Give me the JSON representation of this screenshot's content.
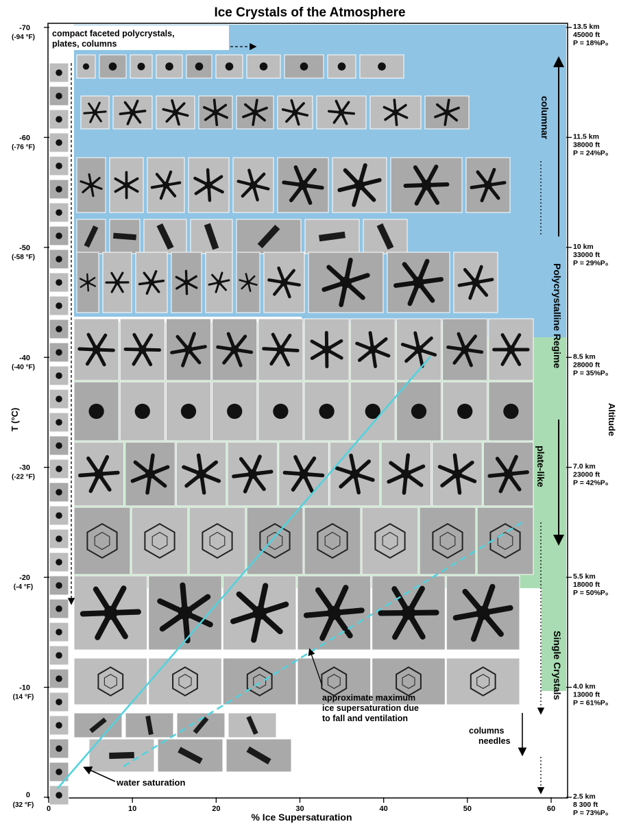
{
  "title": "Ice Crystals of the Atmosphere",
  "colors": {
    "columnar": "#8fc4e4",
    "platelike": "#a9dcb2",
    "photo_gray": "#9a9a9a",
    "saturation_line": "#4fd3df"
  },
  "x_axis": {
    "label": "% Ice Supersaturation",
    "ticks": [
      "0",
      "10",
      "20",
      "30",
      "40",
      "50",
      "60"
    ],
    "range": [
      0,
      60
    ]
  },
  "y_axis": {
    "label": "T (°C)",
    "ticks": [
      {
        "c": "-70",
        "f": "(-94 °F)"
      },
      {
        "c": "-60",
        "f": "(-76 °F)"
      },
      {
        "c": "-50",
        "f": "(-58 °F)"
      },
      {
        "c": "-40",
        "f": "(-40 °F)"
      },
      {
        "c": "-30",
        "f": "(-22 °F)"
      },
      {
        "c": "-20",
        "f": "(-4 °F)"
      },
      {
        "c": "-10",
        "f": "(14 °F)"
      },
      {
        "c": "0",
        "f": "(32 °F)"
      }
    ]
  },
  "right_axis": {
    "label": "Altitude",
    "marks": [
      {
        "km": "13.5 km",
        "ft": "45000 ft",
        "p": "P = 18%P₀"
      },
      {
        "km": "11.5 km",
        "ft": "38000 ft",
        "p": "P = 24%P₀"
      },
      {
        "km": "10 km",
        "ft": "33000 ft",
        "p": "P = 29%P₀"
      },
      {
        "km": "8.5 km",
        "ft": "28000 ft",
        "p": "P = 35%P₀"
      },
      {
        "km": "7.0 km",
        "ft": "23000 ft",
        "p": "P = 42%P₀"
      },
      {
        "km": "5.5 km",
        "ft": "18000 ft",
        "p": "P = 50%P₀"
      },
      {
        "km": "4.0 km",
        "ft": "13000 ft",
        "p": "P = 61%P₀"
      },
      {
        "km": "2.5 km",
        "ft": "8 300 ft",
        "p": "P = 73%P₀"
      }
    ]
  },
  "annotations": {
    "compact_line1": "compact faceted polycrystals,",
    "compact_line2": "plates, columns",
    "columnar": "columnar",
    "polycrystalline": "Polycrystalline Regime",
    "platelike": "plate-like",
    "single": "Single Crystals",
    "maxsat_line1": "approximate maximum",
    "maxsat_line2": "ice supersaturation due",
    "maxsat_line3": "to fall and ventilation",
    "columns": "columns",
    "needles": "needles",
    "water_saturation": "water saturation"
  }
}
